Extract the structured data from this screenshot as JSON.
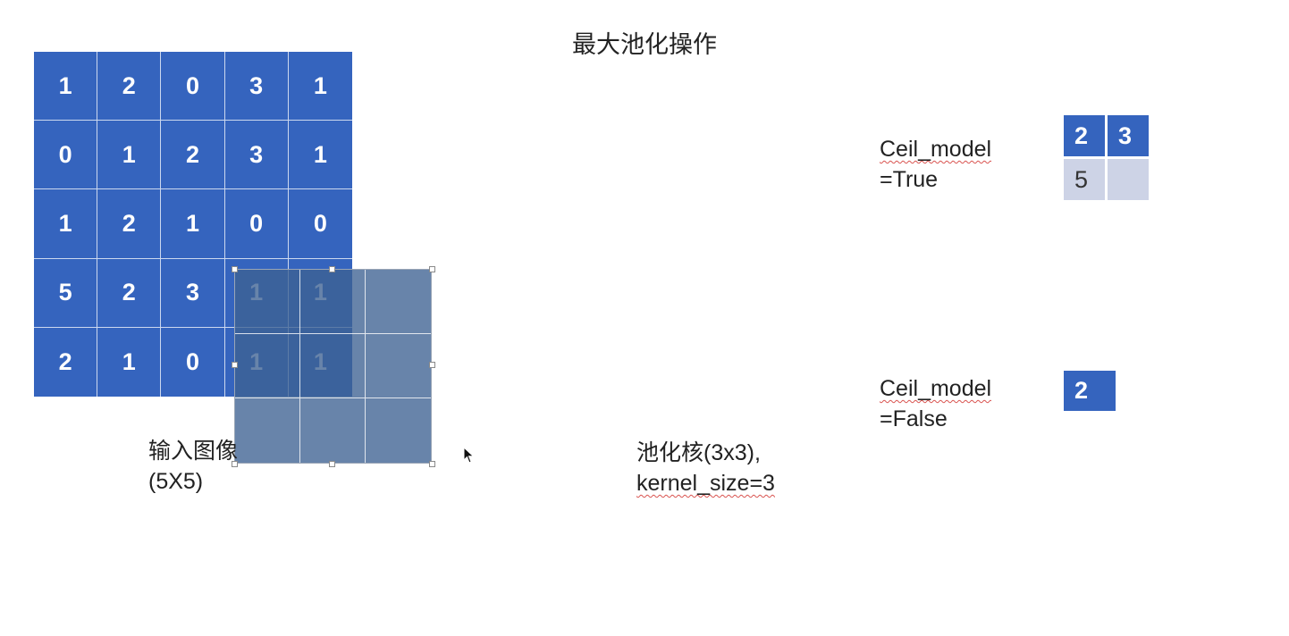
{
  "title": "最大池化操作",
  "input_matrix": [
    [
      "1",
      "2",
      "0",
      "3",
      "1"
    ],
    [
      "0",
      "1",
      "2",
      "3",
      "1"
    ],
    [
      "1",
      "2",
      "1",
      "0",
      "0"
    ],
    [
      "5",
      "2",
      "3",
      "1",
      "1"
    ],
    [
      "2",
      "1",
      "0",
      "1",
      "1"
    ]
  ],
  "input_label": {
    "line1": "输入图像",
    "line2": "(5X5)"
  },
  "kernel_label": {
    "line1": "池化核(3x3),",
    "line2": "kernel_size=3"
  },
  "ceil_true": {
    "line1": "Ceil_model",
    "line2": "=True",
    "grid": [
      [
        "2",
        "3"
      ],
      [
        "5",
        ""
      ]
    ]
  },
  "ceil_false": {
    "line1": "Ceil_model",
    "line2": "=False",
    "grid": [
      [
        "2"
      ]
    ]
  },
  "colors": {
    "matrix_blue": "#3564be",
    "kernel_overlay": "#3e6292",
    "empty_cell": "#cdd3e6"
  }
}
